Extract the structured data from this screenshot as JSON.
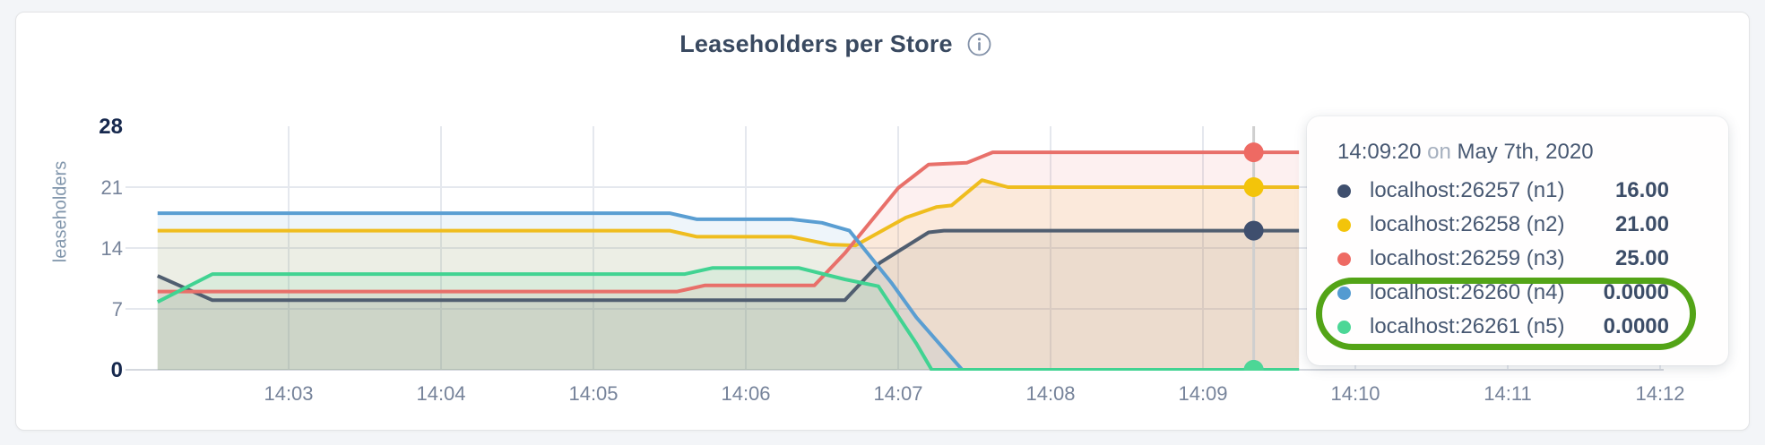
{
  "header": {
    "title": "Leaseholders per Store",
    "info_icon_glyph": "i"
  },
  "chart_data": {
    "type": "area",
    "title": "Leaseholders per Store",
    "ylabel": "leaseholders",
    "ylim": [
      0,
      28
    ],
    "y_ticks": [
      0,
      7,
      14,
      21,
      28
    ],
    "y_ticks_bold": [
      0,
      28
    ],
    "x_ticks": [
      {
        "t": 1,
        "label": "14:03"
      },
      {
        "t": 2,
        "label": "14:04"
      },
      {
        "t": 3,
        "label": "14:05"
      },
      {
        "t": 4,
        "label": "14:06"
      },
      {
        "t": 5,
        "label": "14:07"
      },
      {
        "t": 6,
        "label": "14:08"
      },
      {
        "t": 7,
        "label": "14:09"
      },
      {
        "t": 8,
        "label": "14:10"
      },
      {
        "t": 9,
        "label": "14:11"
      },
      {
        "t": 10,
        "label": "14:12"
      }
    ],
    "x_unit": "minutes after 14:02:00, May 7th 2020",
    "grid": true,
    "fill_opacity": 0.1,
    "series": [
      {
        "name": "localhost:26257 (n1)",
        "color": "#505e70",
        "dot_color": "#3f4f6e",
        "points": [
          [
            0.14,
            10.8
          ],
          [
            0.5,
            8
          ],
          [
            4.65,
            8
          ],
          [
            4.88,
            12.3
          ],
          [
            5.2,
            15.8
          ],
          [
            5.3,
            16
          ],
          [
            7.63,
            16
          ]
        ]
      },
      {
        "name": "localhost:26258 (n2)",
        "color": "#efbd1e",
        "dot_color": "#f3c40a",
        "points": [
          [
            0.14,
            16
          ],
          [
            3.5,
            16
          ],
          [
            3.68,
            15.3
          ],
          [
            4.3,
            15.3
          ],
          [
            4.55,
            14.4
          ],
          [
            4.72,
            14.3
          ],
          [
            5.05,
            17.5
          ],
          [
            5.25,
            18.7
          ],
          [
            5.35,
            18.9
          ],
          [
            5.55,
            21.8
          ],
          [
            5.72,
            21
          ],
          [
            7.63,
            21
          ]
        ]
      },
      {
        "name": "localhost:26259 (n3)",
        "color": "#e8706a",
        "dot_color": "#ee6a63",
        "points": [
          [
            0.14,
            9
          ],
          [
            3.55,
            9
          ],
          [
            3.73,
            9.7
          ],
          [
            4.45,
            9.7
          ],
          [
            4.65,
            13.4
          ],
          [
            5.0,
            20.9
          ],
          [
            5.2,
            23.6
          ],
          [
            5.45,
            23.8
          ],
          [
            5.62,
            25
          ],
          [
            7.63,
            25
          ]
        ]
      },
      {
        "name": "localhost:26260 (n4)",
        "color": "#5a9ed2",
        "dot_color": "#549bd1",
        "points": [
          [
            0.14,
            18
          ],
          [
            3.5,
            18
          ],
          [
            3.68,
            17.3
          ],
          [
            4.3,
            17.3
          ],
          [
            4.5,
            16.9
          ],
          [
            4.68,
            16
          ],
          [
            4.96,
            9.9
          ],
          [
            5.12,
            6
          ],
          [
            5.42,
            0
          ],
          [
            7.63,
            0
          ]
        ]
      },
      {
        "name": "localhost:26261 (n5)",
        "color": "#41d392",
        "dot_color": "#4cd796",
        "points": [
          [
            0.14,
            7.8
          ],
          [
            0.5,
            11
          ],
          [
            3.6,
            11
          ],
          [
            3.78,
            11.7
          ],
          [
            4.35,
            11.7
          ],
          [
            4.65,
            10.4
          ],
          [
            4.87,
            9.6
          ],
          [
            5.12,
            3
          ],
          [
            5.22,
            0
          ],
          [
            7.63,
            0
          ]
        ]
      }
    ],
    "hover": {
      "t": 7.333,
      "time": "14:09:20",
      "dots": [
        {
          "value": 25,
          "color": "#ee6a63"
        },
        {
          "value": 21,
          "color": "#f3c40a"
        },
        {
          "value": 16,
          "color": "#3f4f6e"
        },
        {
          "value": 0,
          "color": "#549bd1"
        },
        {
          "value": 0,
          "color": "#4cd796"
        }
      ]
    },
    "colors": {
      "grid": "#e5e8ee",
      "axis": "#d4d8de",
      "hover_line": "#cfcfcf",
      "tick_label": "#76839a",
      "tick_label_bold": "#17294e"
    }
  },
  "tooltip": {
    "time": "14:09:20",
    "conjunction": " on ",
    "date": "May 7th, 2020",
    "rows": [
      {
        "label": "localhost:26257 (n1)",
        "value": "16.00",
        "color": "#3f4f6e",
        "highlighted": false
      },
      {
        "label": "localhost:26258 (n2)",
        "value": "21.00",
        "color": "#f3c40a",
        "highlighted": false
      },
      {
        "label": "localhost:26259 (n3)",
        "value": "25.00",
        "color": "#ee6a63",
        "highlighted": false
      },
      {
        "label": "localhost:26260 (n4)",
        "value": "0.0000",
        "color": "#549bd1",
        "highlighted": true
      },
      {
        "label": "localhost:26261 (n5)",
        "value": "0.0000",
        "color": "#4cd796",
        "highlighted": true
      }
    ],
    "annotation_color": "#53a417"
  }
}
